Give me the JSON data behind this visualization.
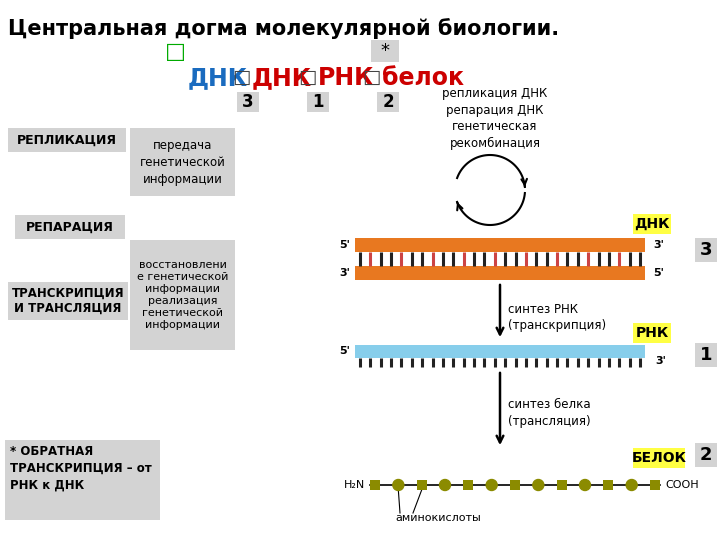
{
  "title": "Центральная догма молекулярной биологии.",
  "subtitle_square": "□",
  "star": "*",
  "flow_dnk1": "ДНК",
  "flow_dnk2": "ДНК",
  "flow_rnk": "РНК",
  "flow_belok": "белок",
  "flow_sq": "□",
  "num3": "3",
  "num1": "1",
  "num2": "2",
  "label_replikaciya": "РЕПЛИКАЦИЯ",
  "label_reparaciya": "РЕПАРАЦИЯ",
  "label_trans": "ТРАНСКРИПЦИЯ\nИ ТРАНСЛЯЦИЯ",
  "desc1": "передача\nгенетической\nинформации",
  "desc23": "восстановлени\nе генетической\nинформации\nреализация\nгенетической\nинформации",
  "dnk_circle_text": "репликация ДНК\nрепарация ДНК\nгенетическая\nрекомбинация",
  "synth_rnk": "синтез РНК\n(транскрипция)",
  "synth_belok": "синтез белка\n(трансляция)",
  "label_dnk": "ДНК",
  "label_rnk": "РНК",
  "label_belok": "БЕЛОК",
  "aminok": "аминокислоты",
  "star_note": "* ОБРАТНАЯ\nТРАНСКРИПЦИЯ – от\nРНК к ДНК",
  "prime5": "5'",
  "prime3": "3'",
  "h2n": "H₂N",
  "cooh": "COOH",
  "bg_color": "#ffffff",
  "gray_box": "#d3d3d3",
  "flow_color_dnk": "#1a6bbf",
  "flow_color_rnk": "#cc0000",
  "flow_color_belok": "#cc0000",
  "green_sq": "#00aa00",
  "yellow_bg": "#ffff44",
  "orange_color": "#e87820",
  "blue_color": "#87ceeb",
  "olive_color": "#8b8b00",
  "dark_sq": "#444444"
}
